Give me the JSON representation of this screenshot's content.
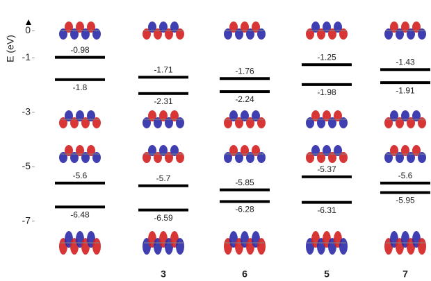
{
  "chart_data": {
    "type": "levels",
    "y_label": "E (eV)",
    "categories": [
      null,
      "3",
      "6",
      "5",
      "7"
    ],
    "series": [
      {
        "color": "#000000",
        "values": [
          -0.98,
          -1.71,
          -1.76,
          -1.25,
          -1.43
        ]
      },
      {
        "color": "#000000",
        "values": [
          -1.8,
          -2.31,
          -2.24,
          -1.98,
          -1.91
        ]
      },
      {
        "color": "#000000",
        "values": [
          -5.6,
          -5.7,
          -5.85,
          -5.37,
          -5.6
        ]
      },
      {
        "color": "#000000",
        "values": [
          -6.48,
          -6.59,
          -6.28,
          -6.31,
          -5.95
        ]
      }
    ],
    "ylim": [
      -9.2,
      1.0
    ],
    "yticks": [
      0,
      -1,
      -3,
      -5,
      -7
    ]
  }
}
